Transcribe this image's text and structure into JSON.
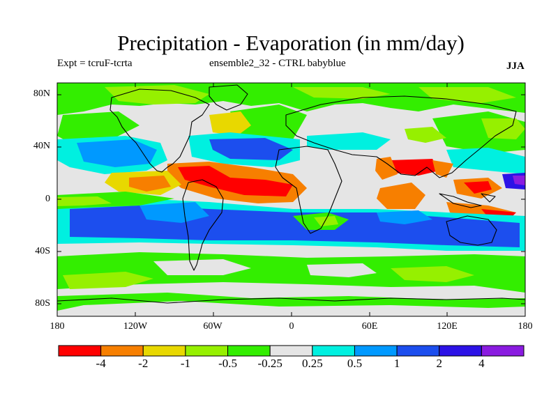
{
  "title": "Precipitation - Evaporation (in mm/day)",
  "expt": "Expt = tcruF-tcrta",
  "ensemble": "ensemble2_32 - CTRL babyblue",
  "season": "JJA",
  "lat_labels": [
    "80N",
    "40N",
    "0",
    "40S",
    "80S"
  ],
  "lon_labels": [
    "180",
    "120W",
    "60W",
    "0",
    "60E",
    "120E",
    "180"
  ],
  "colorbar": {
    "colors": [
      "#ff0000",
      "#f77f00",
      "#e8d800",
      "#96f000",
      "#33ee00",
      "#e5e5e5",
      "#00f0e0",
      "#0099ff",
      "#1c4eee",
      "#2c12e6",
      "#8a1be0"
    ],
    "labels": [
      "-4",
      "-2",
      "-1",
      "-0.5",
      "-0.25",
      "0.25",
      "0.5",
      "1",
      "2",
      "4"
    ]
  }
}
